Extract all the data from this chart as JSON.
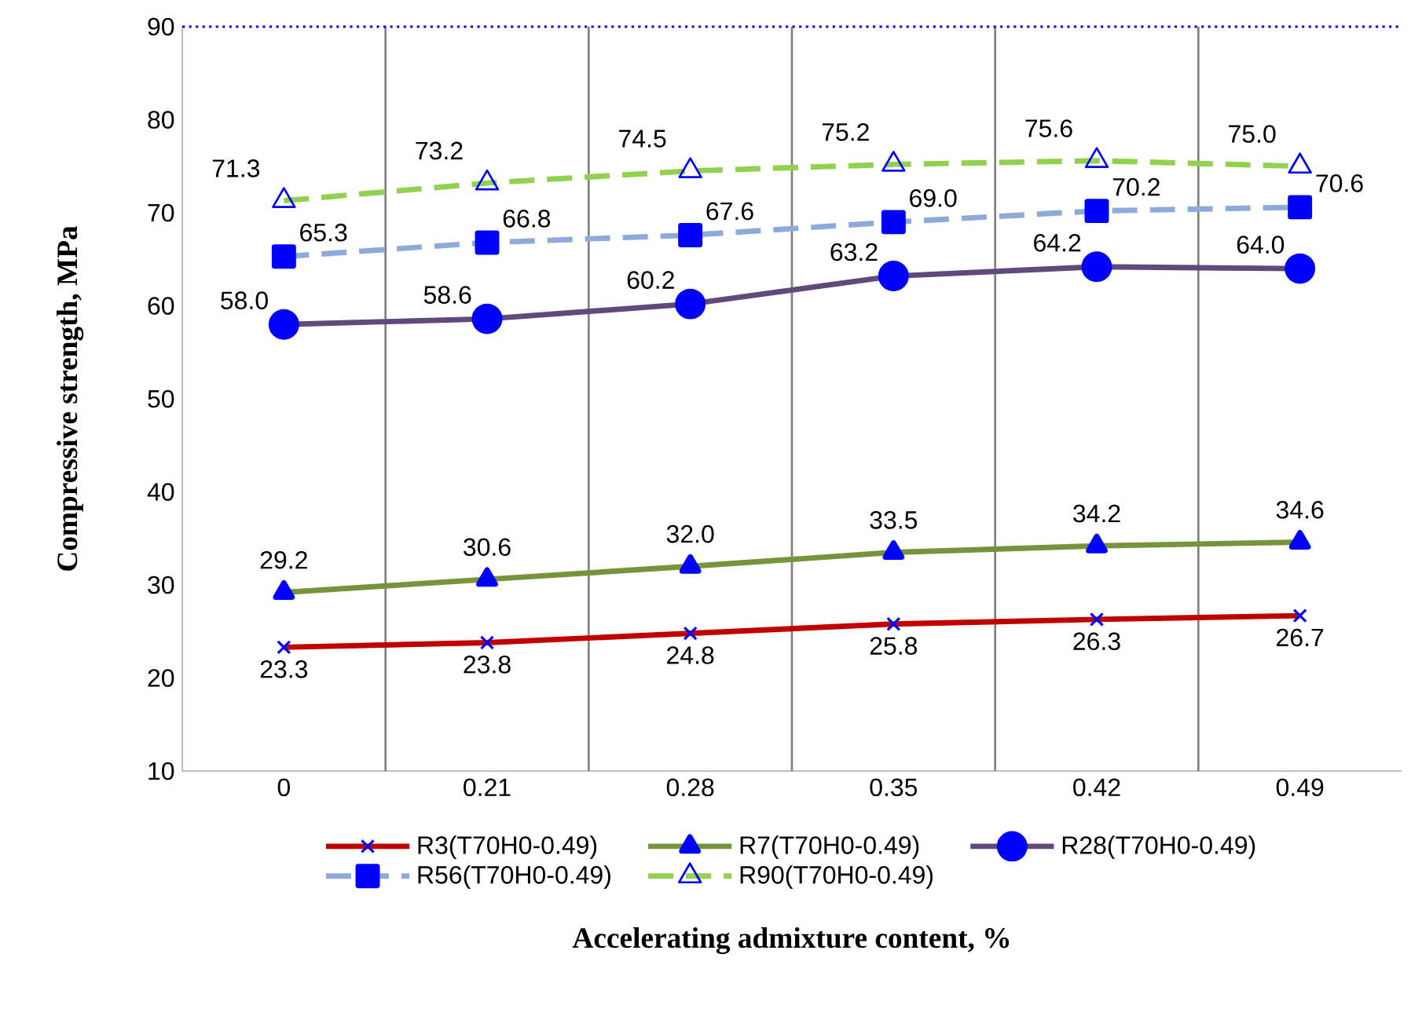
{
  "chart_data": {
    "type": "line",
    "xlabel": "Accelerating admixture content, %",
    "ylabel": "Compressive strength, MPa",
    "categories": [
      "0",
      "0.21",
      "0.28",
      "0.35",
      "0.42",
      "0.49"
    ],
    "ylim": [
      10,
      90
    ],
    "yticks": [
      10,
      20,
      30,
      40,
      50,
      60,
      70,
      80,
      90
    ],
    "grid": "x",
    "legend": "bottom",
    "series": [
      {
        "name": "R3(T70H0-0.49)",
        "color": "#c00000",
        "marker": "cross",
        "line_style": "solid",
        "values": [
          23.3,
          23.8,
          24.8,
          25.8,
          26.3,
          26.7
        ],
        "value_labels": [
          "23.3",
          "23.8",
          "24.8",
          "25.8",
          "26.3",
          "26.7"
        ]
      },
      {
        "name": "R7(T70H0-0.49)",
        "color": "#77933c",
        "marker": "triangle",
        "line_style": "solid",
        "values": [
          29.2,
          30.6,
          32.0,
          33.5,
          34.2,
          34.6
        ],
        "value_labels": [
          "29.2",
          "30.6",
          "32.0",
          "33.5",
          "34.2",
          "34.6"
        ]
      },
      {
        "name": "R28(T70H0-0.49)",
        "color": "#604a7b",
        "marker": "circle",
        "line_style": "solid",
        "values": [
          58.0,
          58.6,
          60.2,
          63.2,
          64.2,
          64.0
        ],
        "value_labels": [
          "58.0",
          "58.6",
          "60.2",
          "63.2",
          "64.2",
          "64.0"
        ]
      },
      {
        "name": "R56(T70H0-0.49)",
        "color": "#8eaadb",
        "marker": "square",
        "line_style": "dashed",
        "values": [
          65.3,
          66.8,
          67.6,
          69.0,
          70.2,
          70.6
        ],
        "value_labels": [
          "65.3",
          "66.8",
          "67.6",
          "69.0",
          "70.2",
          "70.6"
        ]
      },
      {
        "name": "R90(T70H0-0.49)",
        "color": "#92d050",
        "marker": "triangle_open",
        "line_style": "dashed",
        "values": [
          71.3,
          73.2,
          74.5,
          75.2,
          75.6,
          75.0
        ],
        "value_labels": [
          "71.3",
          "73.2",
          "74.5",
          "75.2",
          "75.6",
          "75.0"
        ]
      }
    ]
  }
}
